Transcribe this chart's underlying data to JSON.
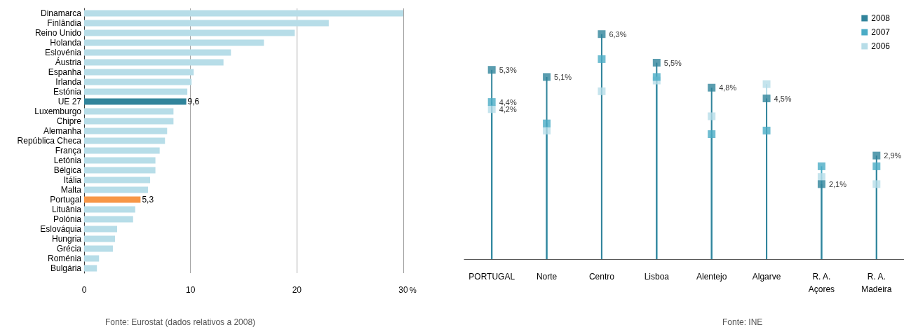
{
  "chart_data": [
    {
      "type": "bar",
      "orientation": "horizontal",
      "categories": [
        "Dinamarca",
        "Finlândia",
        "Reino Unido",
        "Holanda",
        "Eslovénia",
        "Áustria",
        "Espanha",
        "Irlanda",
        "Estónia",
        "UE 27",
        "Luxemburgo",
        "Chipre",
        "Alemanha",
        "República Checa",
        "França",
        "Letónia",
        "Bélgica",
        "Itália",
        "Malta",
        "Portugal",
        "Lituânia",
        "Polónia",
        "Eslováquia",
        "Hungria",
        "Grécia",
        "Roménia",
        "Bulgária"
      ],
      "values": [
        30,
        23,
        19.8,
        16.9,
        13.8,
        13.1,
        10.3,
        10.1,
        9.7,
        9.6,
        8.4,
        8.4,
        7.8,
        7.6,
        7.1,
        6.7,
        6.7,
        6.2,
        6,
        5.3,
        4.8,
        4.6,
        3.1,
        2.9,
        2.7,
        1.4,
        1.2
      ],
      "colors": [
        "#b7dde8",
        "#b7dde8",
        "#b7dde8",
        "#b7dde8",
        "#b7dde8",
        "#b7dde8",
        "#b7dde8",
        "#b7dde8",
        "#b7dde8",
        "#31849b",
        "#b7dde8",
        "#b7dde8",
        "#b7dde8",
        "#b7dde8",
        "#b7dde8",
        "#b7dde8",
        "#b7dde8",
        "#b7dde8",
        "#b7dde8",
        "#f79646",
        "#b7dde8",
        "#b7dde8",
        "#b7dde8",
        "#b7dde8",
        "#b7dde8",
        "#b7dde8",
        "#b7dde8"
      ],
      "value_labels": [
        null,
        null,
        null,
        null,
        null,
        null,
        null,
        null,
        null,
        "9,6",
        null,
        null,
        null,
        null,
        null,
        null,
        null,
        null,
        null,
        "5,3",
        null,
        null,
        null,
        null,
        null,
        null,
        null
      ],
      "xlim": [
        0,
        30
      ],
      "xticks": [
        0,
        10,
        20,
        30
      ],
      "xlabel": "%",
      "grid": "x",
      "annotations": [
        "Fonte: Eurostat (dados relativos a 2008)"
      ]
    },
    {
      "type": "lollipop",
      "categories": [
        "PORTUGAL",
        "Norte",
        "Centro",
        "Lisboa",
        "Alentejo",
        "Algarve",
        "R. A.\nAçores",
        "R. A.\nMadeira"
      ],
      "series": [
        {
          "name": "2008",
          "color": "#31849b",
          "values": [
            5.3,
            5.1,
            6.3,
            5.5,
            4.8,
            4.5,
            2.1,
            2.9
          ],
          "value_labels": [
            "5,3%",
            "5,1%",
            "6,3%",
            "5,5%",
            "4,8%",
            "4,5%",
            "2,1%",
            "2,9%"
          ]
        },
        {
          "name": "2007",
          "color": "#4bacc6",
          "values": [
            4.4,
            3.8,
            5.6,
            5.1,
            3.5,
            3.6,
            2.6,
            2.6
          ],
          "value_labels": [
            "4,4%",
            null,
            null,
            null,
            null,
            null,
            null,
            null
          ]
        },
        {
          "name": "2006",
          "color": "#b7dde8",
          "values": [
            4.2,
            3.6,
            4.7,
            5.0,
            4.0,
            4.9,
            2.3,
            2.1
          ],
          "value_labels": [
            "4,2%",
            null,
            null,
            null,
            null,
            null,
            null,
            null
          ]
        }
      ],
      "marker": "square",
      "legend": "top right",
      "annotations": [
        "Fonte: INE"
      ]
    }
  ]
}
